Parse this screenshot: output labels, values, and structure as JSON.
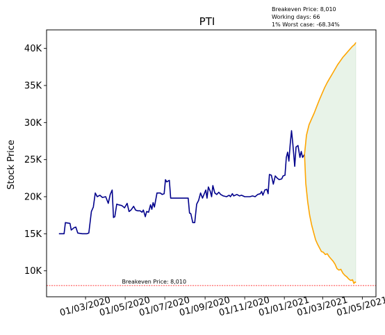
{
  "chart_data": {
    "type": "line",
    "title": "PTI",
    "ylabel": "Stock Price",
    "xlabel": "",
    "info_lines": [
      "Breakeven Price: 8,010",
      "Working days: 66",
      "1% Worst case: -68.34%"
    ],
    "breakeven_label": "Breakeven Price: 8,010",
    "breakeven_value": 8010,
    "ylim": [
      6500,
      42500
    ],
    "yticks": [
      10000,
      15000,
      20000,
      25000,
      30000,
      35000,
      40000
    ],
    "ytick_labels": [
      "10K",
      "15K",
      "20K",
      "25K",
      "30K",
      "35K",
      "40K"
    ],
    "xlim": [
      "2020-01-01",
      "2021-05-22"
    ],
    "xticks": [
      "2020-03-01",
      "2020-05-01",
      "2020-07-01",
      "2020-09-01",
      "2020-11-01",
      "2021-01-01",
      "2021-03-01",
      "2021-05-01"
    ],
    "xtick_labels": [
      "01/03/2020",
      "01/05/2020",
      "01/07/2020",
      "01/09/2020",
      "01/11/2020",
      "01/01/2021",
      "01/03/2021",
      "01/05/2021"
    ],
    "colors": {
      "history": "#00008b",
      "forecast": "#ffa500",
      "band_fill": "#e6f2e6",
      "breakeven": "#ff0000"
    },
    "series": [
      {
        "key": "history",
        "points": [
          [
            "2020-01-20",
            15000
          ],
          [
            "2020-01-28",
            15000
          ],
          [
            "2020-01-30",
            16500
          ],
          [
            "2020-02-06",
            16400
          ],
          [
            "2020-02-08",
            15500
          ],
          [
            "2020-02-12",
            15800
          ],
          [
            "2020-02-15",
            15900
          ],
          [
            "2020-02-18",
            15100
          ],
          [
            "2020-02-25",
            15000
          ],
          [
            "2020-03-03",
            15000
          ],
          [
            "2020-03-06",
            15100
          ],
          [
            "2020-03-10",
            18000
          ],
          [
            "2020-03-13",
            18600
          ],
          [
            "2020-03-16",
            20500
          ],
          [
            "2020-03-19",
            20000
          ],
          [
            "2020-03-23",
            20200
          ],
          [
            "2020-03-27",
            19900
          ],
          [
            "2020-04-01",
            20000
          ],
          [
            "2020-04-05",
            19100
          ],
          [
            "2020-04-08",
            20300
          ],
          [
            "2020-04-11",
            20900
          ],
          [
            "2020-04-13",
            17200
          ],
          [
            "2020-04-15",
            17300
          ],
          [
            "2020-04-18",
            19000
          ],
          [
            "2020-04-21",
            18900
          ],
          [
            "2020-04-26",
            18800
          ],
          [
            "2020-04-30",
            18500
          ],
          [
            "2020-05-04",
            19100
          ],
          [
            "2020-05-07",
            18000
          ],
          [
            "2020-05-10",
            18200
          ],
          [
            "2020-05-14",
            18700
          ],
          [
            "2020-05-17",
            18200
          ],
          [
            "2020-05-20",
            18100
          ],
          [
            "2020-05-24",
            18100
          ],
          [
            "2020-05-27",
            17900
          ],
          [
            "2020-05-29",
            18200
          ],
          [
            "2020-06-01",
            17300
          ],
          [
            "2020-06-03",
            18000
          ],
          [
            "2020-06-06",
            17900
          ],
          [
            "2020-06-09",
            18900
          ],
          [
            "2020-06-11",
            18300
          ],
          [
            "2020-06-13",
            19200
          ],
          [
            "2020-06-15",
            18600
          ],
          [
            "2020-06-19",
            20500
          ],
          [
            "2020-06-24",
            20500
          ],
          [
            "2020-06-27",
            20300
          ],
          [
            "2020-06-30",
            20400
          ],
          [
            "2020-07-02",
            22300
          ],
          [
            "2020-07-04",
            22000
          ],
          [
            "2020-07-08",
            22200
          ],
          [
            "2020-07-10",
            19800
          ],
          [
            "2020-07-15",
            19800
          ],
          [
            "2020-07-20",
            19800
          ],
          [
            "2020-07-25",
            19800
          ],
          [
            "2020-08-01",
            19800
          ],
          [
            "2020-08-06",
            19800
          ],
          [
            "2020-08-08",
            17800
          ],
          [
            "2020-08-10",
            17700
          ],
          [
            "2020-08-13",
            16500
          ],
          [
            "2020-08-16",
            16500
          ],
          [
            "2020-08-19",
            19000
          ],
          [
            "2020-08-22",
            19500
          ],
          [
            "2020-08-25",
            20500
          ],
          [
            "2020-08-28",
            19800
          ],
          [
            "2020-09-02",
            20900
          ],
          [
            "2020-09-04",
            19800
          ],
          [
            "2020-09-06",
            21300
          ],
          [
            "2020-09-09",
            20700
          ],
          [
            "2020-09-11",
            20000
          ],
          [
            "2020-09-13",
            21500
          ],
          [
            "2020-09-16",
            20500
          ],
          [
            "2020-09-19",
            20300
          ],
          [
            "2020-09-22",
            20600
          ],
          [
            "2020-09-25",
            20300
          ],
          [
            "2020-09-29",
            20100
          ],
          [
            "2020-10-04",
            20000
          ],
          [
            "2020-10-08",
            20200
          ],
          [
            "2020-10-10",
            20000
          ],
          [
            "2020-10-13",
            20400
          ],
          [
            "2020-10-15",
            20100
          ],
          [
            "2020-10-20",
            20300
          ],
          [
            "2020-10-24",
            20100
          ],
          [
            "2020-10-27",
            20200
          ],
          [
            "2020-11-01",
            20000
          ],
          [
            "2020-11-05",
            20000
          ],
          [
            "2020-11-09",
            20000
          ],
          [
            "2020-11-13",
            20100
          ],
          [
            "2020-11-17",
            20000
          ],
          [
            "2020-11-21",
            20300
          ],
          [
            "2020-11-25",
            20400
          ],
          [
            "2020-11-27",
            20700
          ],
          [
            "2020-11-29",
            20200
          ],
          [
            "2020-12-02",
            20900
          ],
          [
            "2020-12-05",
            21000
          ],
          [
            "2020-12-07",
            20400
          ],
          [
            "2020-12-09",
            23000
          ],
          [
            "2020-12-12",
            22900
          ],
          [
            "2020-12-15",
            21700
          ],
          [
            "2020-12-18",
            22800
          ],
          [
            "2020-12-21",
            22500
          ],
          [
            "2020-12-24",
            22300
          ],
          [
            "2020-12-28",
            22400
          ],
          [
            "2020-12-30",
            22800
          ],
          [
            "2021-01-02",
            22900
          ],
          [
            "2021-01-04",
            25300
          ],
          [
            "2021-01-06",
            26000
          ],
          [
            "2021-01-08",
            24800
          ],
          [
            "2021-01-10",
            27100
          ],
          [
            "2021-01-12",
            28900
          ],
          [
            "2021-01-14",
            27200
          ],
          [
            "2021-01-17",
            24100
          ],
          [
            "2021-01-19",
            26700
          ],
          [
            "2021-01-22",
            26900
          ],
          [
            "2021-01-25",
            25300
          ],
          [
            "2021-01-27",
            26100
          ],
          [
            "2021-01-29",
            25300
          ],
          [
            "2021-02-01",
            25700
          ]
        ]
      },
      {
        "key": "forecast_upper",
        "points": [
          [
            "2021-02-01",
            25700
          ],
          [
            "2021-02-04",
            28300
          ],
          [
            "2021-02-08",
            29700
          ],
          [
            "2021-02-12",
            30500
          ],
          [
            "2021-02-16",
            31300
          ],
          [
            "2021-02-20",
            32200
          ],
          [
            "2021-02-24",
            33100
          ],
          [
            "2021-02-28",
            33900
          ],
          [
            "2021-03-04",
            34700
          ],
          [
            "2021-03-08",
            35400
          ],
          [
            "2021-03-12",
            36000
          ],
          [
            "2021-03-16",
            36600
          ],
          [
            "2021-03-20",
            37200
          ],
          [
            "2021-03-24",
            37800
          ],
          [
            "2021-03-28",
            38300
          ],
          [
            "2021-04-01",
            38800
          ],
          [
            "2021-04-05",
            39200
          ],
          [
            "2021-04-09",
            39600
          ],
          [
            "2021-04-13",
            40000
          ],
          [
            "2021-04-16",
            40300
          ],
          [
            "2021-04-19",
            40500
          ],
          [
            "2021-04-21",
            40800
          ]
        ]
      },
      {
        "key": "forecast_lower",
        "points": [
          [
            "2021-02-01",
            25700
          ],
          [
            "2021-02-03",
            21800
          ],
          [
            "2021-02-06",
            19300
          ],
          [
            "2021-02-09",
            17500
          ],
          [
            "2021-02-12",
            16200
          ],
          [
            "2021-02-15",
            15200
          ],
          [
            "2021-02-18",
            14200
          ],
          [
            "2021-02-21",
            13600
          ],
          [
            "2021-02-24",
            13100
          ],
          [
            "2021-02-27",
            12600
          ],
          [
            "2021-03-02",
            12500
          ],
          [
            "2021-03-05",
            12200
          ],
          [
            "2021-03-08",
            12300
          ],
          [
            "2021-03-11",
            11900
          ],
          [
            "2021-03-14",
            11600
          ],
          [
            "2021-03-17",
            11300
          ],
          [
            "2021-03-20",
            10900
          ],
          [
            "2021-03-23",
            10300
          ],
          [
            "2021-03-26",
            10100
          ],
          [
            "2021-03-29",
            10200
          ],
          [
            "2021-04-01",
            9700
          ],
          [
            "2021-04-04",
            9400
          ],
          [
            "2021-04-07",
            9200
          ],
          [
            "2021-04-10",
            8900
          ],
          [
            "2021-04-13",
            8700
          ],
          [
            "2021-04-16",
            8800
          ],
          [
            "2021-04-18",
            8300
          ],
          [
            "2021-04-20",
            8500
          ],
          [
            "2021-04-21",
            8400
          ]
        ]
      }
    ]
  }
}
